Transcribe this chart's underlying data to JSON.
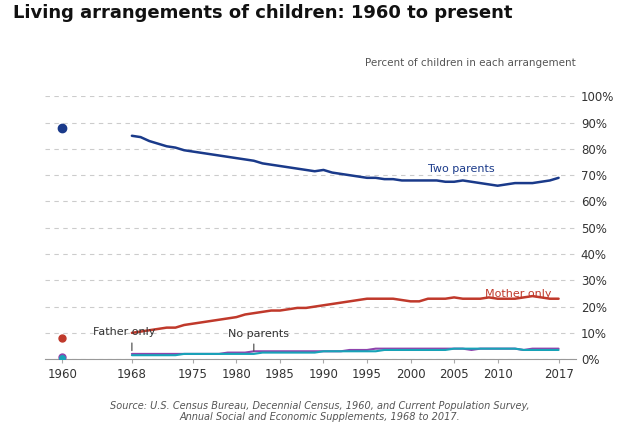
{
  "title": "Living arrangements of children: 1960 to present",
  "subtitle": "Percent of children in each arrangement",
  "source_text": "Source: U.S. Census Bureau, Decennial Census, 1960, and Current Population Survey,\nAnnual Social and Economic Supplements, 1968 to 2017.",
  "background_color": "#ffffff",
  "two_parents": {
    "label": "Two parents",
    "color": "#1a3a8a",
    "dot_1960": 88,
    "years": [
      1968,
      1969,
      1970,
      1971,
      1972,
      1973,
      1974,
      1975,
      1976,
      1977,
      1978,
      1979,
      1980,
      1981,
      1982,
      1983,
      1984,
      1985,
      1986,
      1987,
      1988,
      1989,
      1990,
      1991,
      1992,
      1993,
      1994,
      1995,
      1996,
      1997,
      1998,
      1999,
      2000,
      2001,
      2002,
      2003,
      2004,
      2005,
      2006,
      2007,
      2008,
      2009,
      2010,
      2011,
      2012,
      2013,
      2014,
      2015,
      2016,
      2017
    ],
    "values": [
      85,
      84.5,
      83,
      82,
      81,
      80.5,
      79.5,
      79,
      78.5,
      78,
      77.5,
      77,
      76.5,
      76,
      75.5,
      74.5,
      74,
      73.5,
      73,
      72.5,
      72,
      71.5,
      72,
      71,
      70.5,
      70,
      69.5,
      69,
      69,
      68.5,
      68.5,
      68,
      68,
      68,
      68,
      68,
      67.5,
      67.5,
      68,
      67.5,
      67,
      66.5,
      66,
      66.5,
      67,
      67,
      67,
      67.5,
      68,
      69
    ]
  },
  "mother_only": {
    "label": "Mother only",
    "color": "#c0392b",
    "dot_1960": 8,
    "years": [
      1968,
      1969,
      1970,
      1971,
      1972,
      1973,
      1974,
      1975,
      1976,
      1977,
      1978,
      1979,
      1980,
      1981,
      1982,
      1983,
      1984,
      1985,
      1986,
      1987,
      1988,
      1989,
      1990,
      1991,
      1992,
      1993,
      1994,
      1995,
      1996,
      1997,
      1998,
      1999,
      2000,
      2001,
      2002,
      2003,
      2004,
      2005,
      2006,
      2007,
      2008,
      2009,
      2010,
      2011,
      2012,
      2013,
      2014,
      2015,
      2016,
      2017
    ],
    "values": [
      10,
      10.5,
      11,
      11.5,
      12,
      12,
      13,
      13.5,
      14,
      14.5,
      15,
      15.5,
      16,
      17,
      17.5,
      18,
      18.5,
      18.5,
      19,
      19.5,
      19.5,
      20,
      20.5,
      21,
      21.5,
      22,
      22.5,
      23,
      23,
      23,
      23,
      22.5,
      22,
      22,
      23,
      23,
      23,
      23.5,
      23,
      23,
      23,
      23.5,
      23,
      23,
      23,
      23.5,
      24,
      23.5,
      23,
      23
    ]
  },
  "father_only": {
    "label": "Father only",
    "color": "#8e44ad",
    "dot_1960": 1,
    "years": [
      1968,
      1969,
      1970,
      1971,
      1972,
      1973,
      1974,
      1975,
      1976,
      1977,
      1978,
      1979,
      1980,
      1981,
      1982,
      1983,
      1984,
      1985,
      1986,
      1987,
      1988,
      1989,
      1990,
      1991,
      1992,
      1993,
      1994,
      1995,
      1996,
      1997,
      1998,
      1999,
      2000,
      2001,
      2002,
      2003,
      2004,
      2005,
      2006,
      2007,
      2008,
      2009,
      2010,
      2011,
      2012,
      2013,
      2014,
      2015,
      2016,
      2017
    ],
    "values": [
      2,
      2,
      2,
      2,
      2,
      2,
      2,
      2,
      2,
      2,
      2,
      2.5,
      2.5,
      2.5,
      3,
      3,
      3,
      3,
      3,
      3,
      3,
      3,
      3,
      3,
      3,
      3.5,
      3.5,
      3.5,
      4,
      4,
      4,
      4,
      4,
      4,
      4,
      4,
      4,
      4,
      4,
      3.5,
      4,
      4,
      4,
      4,
      4,
      3.5,
      4,
      4,
      4,
      4
    ]
  },
  "no_parents": {
    "label": "No parents",
    "color": "#17a3b8",
    "dot_1960": 0.5,
    "years": [
      1968,
      1969,
      1970,
      1971,
      1972,
      1973,
      1974,
      1975,
      1976,
      1977,
      1978,
      1979,
      1980,
      1981,
      1982,
      1983,
      1984,
      1985,
      1986,
      1987,
      1988,
      1989,
      1990,
      1991,
      1992,
      1993,
      1994,
      1995,
      1996,
      1997,
      1998,
      1999,
      2000,
      2001,
      2002,
      2003,
      2004,
      2005,
      2006,
      2007,
      2008,
      2009,
      2010,
      2011,
      2012,
      2013,
      2014,
      2015,
      2016,
      2017
    ],
    "values": [
      1.5,
      1.5,
      1.5,
      1.5,
      1.5,
      1.5,
      2,
      2,
      2,
      2,
      2,
      2,
      2,
      2,
      2,
      2.5,
      2.5,
      2.5,
      2.5,
      2.5,
      2.5,
      2.5,
      3,
      3,
      3,
      3,
      3,
      3,
      3,
      3.5,
      3.5,
      3.5,
      3.5,
      3.5,
      3.5,
      3.5,
      3.5,
      4,
      4,
      4,
      4,
      4,
      4,
      4,
      4,
      3.5,
      3.5,
      3.5,
      3.5,
      3.5
    ]
  },
  "xlim": [
    1958,
    2019
  ],
  "ylim": [
    0,
    100
  ],
  "xticks": [
    1960,
    1968,
    1975,
    1980,
    1985,
    1990,
    1995,
    2000,
    2005,
    2010,
    2017
  ],
  "yticks": [
    0,
    10,
    20,
    30,
    40,
    50,
    60,
    70,
    80,
    90,
    100
  ],
  "grid_color": "#cccccc",
  "text_color": "#333333"
}
